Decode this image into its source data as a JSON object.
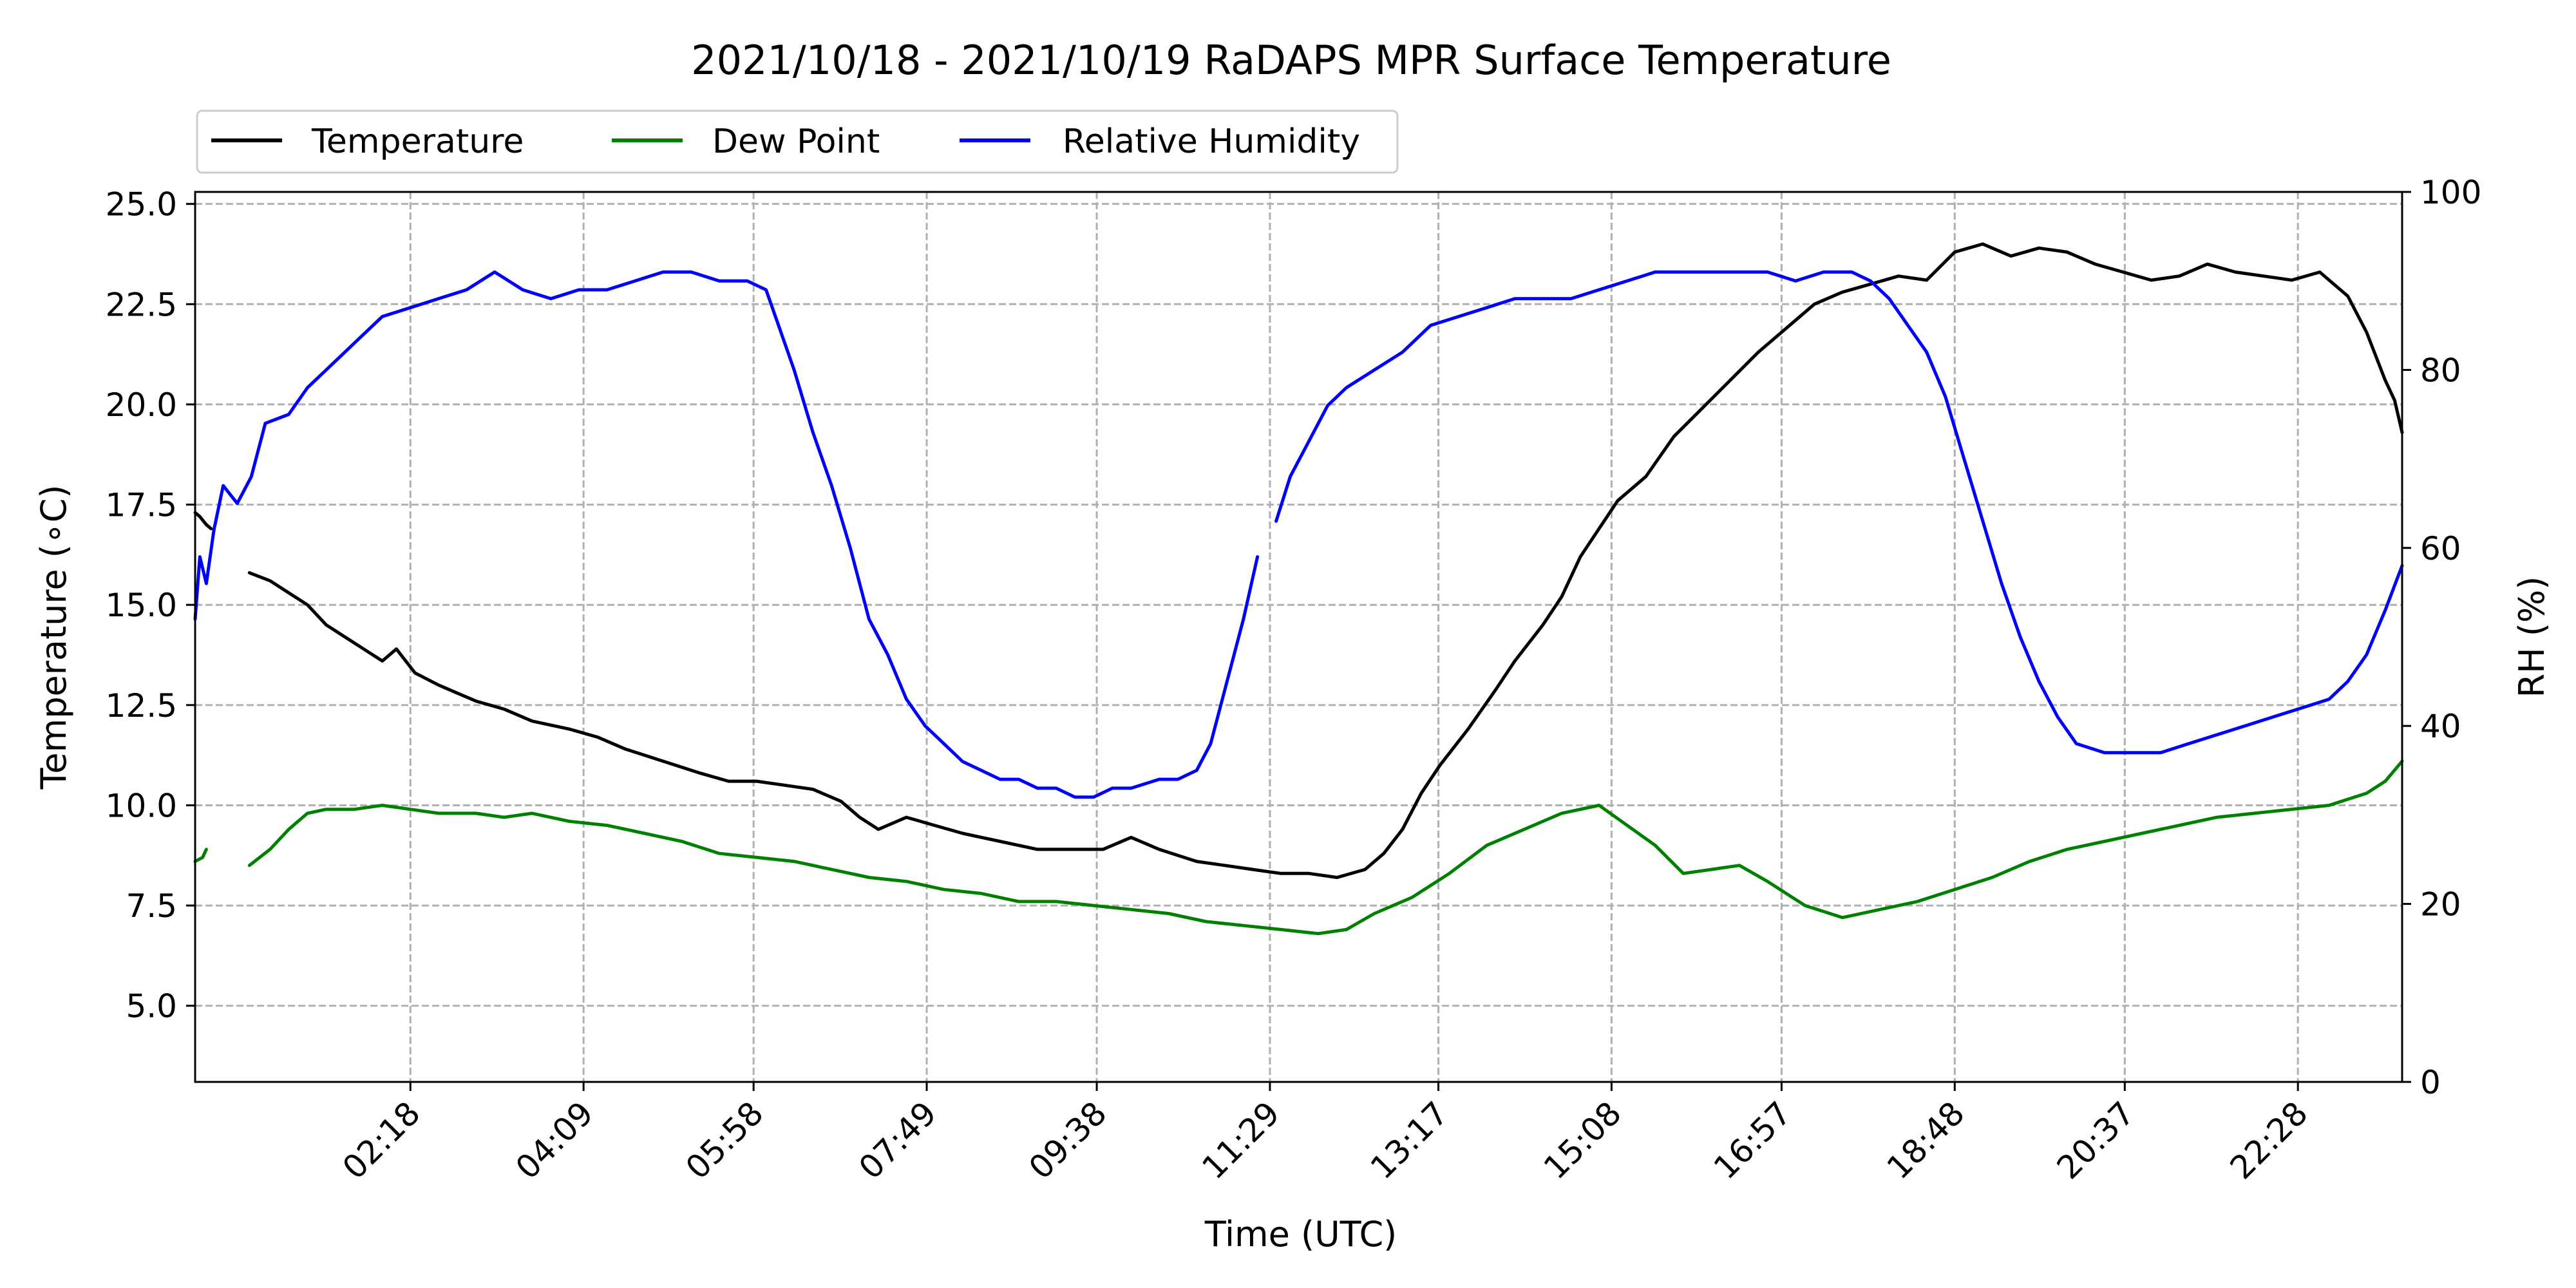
{
  "chart_data": {
    "type": "line",
    "title": "2021/10/18 - 2021/10/19 RaDAPS MPR Surface Temperature",
    "xlabel": "Time (UTC)",
    "ylabel_left": "Temperature (∘C)",
    "ylabel_right": "RH (%)",
    "x_ticks": [
      "02:18",
      "04:09",
      "05:58",
      "07:49",
      "09:38",
      "11:29",
      "13:17",
      "15:08",
      "16:57",
      "18:48",
      "20:37",
      "22:28"
    ],
    "y_ticks_left": [
      "5.0",
      "7.5",
      "10.0",
      "12.5",
      "15.0",
      "17.5",
      "20.0",
      "22.5",
      "25.0"
    ],
    "y_ticks_right": [
      "0",
      "20",
      "40",
      "60",
      "80",
      "100"
    ],
    "ylim_left": [
      3.1,
      25.3
    ],
    "ylim_right": [
      0,
      100
    ],
    "x_range_hours": [
      0.0,
      23.58
    ],
    "grid": true,
    "legend_placement": "top-left, above plot",
    "series": [
      {
        "name": "Temperature",
        "axis": "left",
        "color": "#000000",
        "points": [
          [
            0.0,
            17.3
          ],
          [
            0.05,
            17.2
          ],
          [
            0.12,
            17.0
          ],
          [
            0.17,
            16.9
          ],
          null,
          [
            0.58,
            15.8
          ],
          [
            0.8,
            15.6
          ],
          [
            1.0,
            15.3
          ],
          [
            1.2,
            15.0
          ],
          [
            1.4,
            14.5
          ],
          [
            1.6,
            14.2
          ],
          [
            1.8,
            13.9
          ],
          [
            2.0,
            13.6
          ],
          [
            2.15,
            13.9
          ],
          [
            2.35,
            13.3
          ],
          [
            2.6,
            13.0
          ],
          [
            2.8,
            12.8
          ],
          [
            3.0,
            12.6
          ],
          [
            3.3,
            12.4
          ],
          [
            3.6,
            12.1
          ],
          [
            4.0,
            11.9
          ],
          [
            4.3,
            11.7
          ],
          [
            4.6,
            11.4
          ],
          [
            5.0,
            11.1
          ],
          [
            5.4,
            10.8
          ],
          [
            5.7,
            10.6
          ],
          [
            6.0,
            10.6
          ],
          [
            6.3,
            10.5
          ],
          [
            6.6,
            10.4
          ],
          [
            6.9,
            10.1
          ],
          [
            7.1,
            9.7
          ],
          [
            7.3,
            9.4
          ],
          [
            7.6,
            9.7
          ],
          [
            7.9,
            9.5
          ],
          [
            8.2,
            9.3
          ],
          [
            8.6,
            9.1
          ],
          [
            9.0,
            8.9
          ],
          [
            9.4,
            8.9
          ],
          [
            9.7,
            8.9
          ],
          [
            10.0,
            9.2
          ],
          [
            10.3,
            8.9
          ],
          [
            10.7,
            8.6
          ],
          [
            11.0,
            8.5
          ],
          [
            11.3,
            8.4
          ],
          [
            11.6,
            8.3
          ],
          [
            11.9,
            8.3
          ],
          [
            12.2,
            8.2
          ],
          [
            12.5,
            8.4
          ],
          [
            12.7,
            8.8
          ],
          [
            12.9,
            9.4
          ],
          [
            13.1,
            10.3
          ],
          [
            13.3,
            11.0
          ],
          [
            13.6,
            11.9
          ],
          [
            13.9,
            12.9
          ],
          [
            14.1,
            13.6
          ],
          [
            14.4,
            14.5
          ],
          [
            14.6,
            15.2
          ],
          [
            14.8,
            16.2
          ],
          [
            15.0,
            16.9
          ],
          [
            15.2,
            17.6
          ],
          [
            15.5,
            18.2
          ],
          [
            15.8,
            19.2
          ],
          [
            16.1,
            19.9
          ],
          [
            16.4,
            20.6
          ],
          [
            16.7,
            21.3
          ],
          [
            17.0,
            21.9
          ],
          [
            17.3,
            22.5
          ],
          [
            17.6,
            22.8
          ],
          [
            17.9,
            23.0
          ],
          [
            18.2,
            23.2
          ],
          [
            18.5,
            23.1
          ],
          [
            18.8,
            23.8
          ],
          [
            19.1,
            24.0
          ],
          [
            19.4,
            23.7
          ],
          [
            19.7,
            23.9
          ],
          [
            20.0,
            23.8
          ],
          [
            20.3,
            23.5
          ],
          [
            20.6,
            23.3
          ],
          [
            20.9,
            23.1
          ],
          [
            21.2,
            23.2
          ],
          [
            21.5,
            23.5
          ],
          [
            21.8,
            23.3
          ],
          [
            22.1,
            23.2
          ],
          [
            22.4,
            23.1
          ],
          [
            22.7,
            23.3
          ],
          [
            23.0,
            22.7
          ],
          [
            23.2,
            21.8
          ],
          [
            23.4,
            20.6
          ],
          [
            23.5,
            20.1
          ],
          [
            23.58,
            19.3
          ]
        ]
      },
      {
        "name": "Dew Point",
        "axis": "left",
        "color": "#008000",
        "points": [
          [
            0.0,
            8.6
          ],
          [
            0.08,
            8.7
          ],
          [
            0.12,
            8.9
          ],
          null,
          [
            0.58,
            8.5
          ],
          [
            0.8,
            8.9
          ],
          [
            1.0,
            9.4
          ],
          [
            1.2,
            9.8
          ],
          [
            1.4,
            9.9
          ],
          [
            1.7,
            9.9
          ],
          [
            2.0,
            10.0
          ],
          [
            2.3,
            9.9
          ],
          [
            2.6,
            9.8
          ],
          [
            3.0,
            9.8
          ],
          [
            3.3,
            9.7
          ],
          [
            3.6,
            9.8
          ],
          [
            4.0,
            9.6
          ],
          [
            4.4,
            9.5
          ],
          [
            4.8,
            9.3
          ],
          [
            5.2,
            9.1
          ],
          [
            5.6,
            8.8
          ],
          [
            6.0,
            8.7
          ],
          [
            6.4,
            8.6
          ],
          [
            6.8,
            8.4
          ],
          [
            7.2,
            8.2
          ],
          [
            7.6,
            8.1
          ],
          [
            8.0,
            7.9
          ],
          [
            8.4,
            7.8
          ],
          [
            8.8,
            7.6
          ],
          [
            9.2,
            7.6
          ],
          [
            9.6,
            7.5
          ],
          [
            10.0,
            7.4
          ],
          [
            10.4,
            7.3
          ],
          [
            10.8,
            7.1
          ],
          [
            11.2,
            7.0
          ],
          [
            11.6,
            6.9
          ],
          [
            12.0,
            6.8
          ],
          [
            12.3,
            6.9
          ],
          [
            12.6,
            7.3
          ],
          [
            13.0,
            7.7
          ],
          [
            13.4,
            8.3
          ],
          [
            13.8,
            9.0
          ],
          [
            14.2,
            9.4
          ],
          [
            14.6,
            9.8
          ],
          [
            15.0,
            10.0
          ],
          [
            15.3,
            9.5
          ],
          [
            15.6,
            9.0
          ],
          [
            15.9,
            8.3
          ],
          [
            16.2,
            8.4
          ],
          [
            16.5,
            8.5
          ],
          [
            16.8,
            8.1
          ],
          [
            17.2,
            7.5
          ],
          [
            17.6,
            7.2
          ],
          [
            18.0,
            7.4
          ],
          [
            18.4,
            7.6
          ],
          [
            18.8,
            7.9
          ],
          [
            19.2,
            8.2
          ],
          [
            19.6,
            8.6
          ],
          [
            20.0,
            8.9
          ],
          [
            20.4,
            9.1
          ],
          [
            20.8,
            9.3
          ],
          [
            21.2,
            9.5
          ],
          [
            21.6,
            9.7
          ],
          [
            22.0,
            9.8
          ],
          [
            22.4,
            9.9
          ],
          [
            22.8,
            10.0
          ],
          [
            23.2,
            10.3
          ],
          [
            23.4,
            10.6
          ],
          [
            23.58,
            11.1
          ]
        ]
      },
      {
        "name": "Relative Humidity",
        "axis": "right",
        "color": "#0000ff",
        "points": [
          [
            0.0,
            52
          ],
          [
            0.05,
            59
          ],
          [
            0.12,
            56
          ],
          [
            0.2,
            62
          ],
          [
            0.3,
            67
          ],
          [
            0.45,
            65
          ],
          [
            0.6,
            68
          ],
          [
            0.75,
            74
          ],
          [
            1.0,
            75
          ],
          [
            1.2,
            78
          ],
          [
            1.4,
            80
          ],
          [
            1.6,
            82
          ],
          [
            1.8,
            84
          ],
          [
            2.0,
            86
          ],
          [
            2.3,
            87
          ],
          [
            2.6,
            88
          ],
          [
            2.9,
            89
          ],
          [
            3.2,
            91
          ],
          [
            3.5,
            89
          ],
          [
            3.8,
            88
          ],
          [
            4.1,
            89
          ],
          [
            4.4,
            89
          ],
          [
            4.7,
            90
          ],
          [
            5.0,
            91
          ],
          [
            5.3,
            91
          ],
          [
            5.6,
            90
          ],
          [
            5.9,
            90
          ],
          [
            6.1,
            89
          ],
          [
            6.2,
            86
          ],
          [
            6.4,
            80
          ],
          [
            6.6,
            73
          ],
          [
            6.8,
            67
          ],
          [
            7.0,
            60
          ],
          [
            7.2,
            52
          ],
          [
            7.4,
            48
          ],
          [
            7.6,
            43
          ],
          [
            7.8,
            40
          ],
          [
            8.0,
            38
          ],
          [
            8.2,
            36
          ],
          [
            8.4,
            35
          ],
          [
            8.6,
            34
          ],
          [
            8.8,
            34
          ],
          [
            9.0,
            33
          ],
          [
            9.2,
            33
          ],
          [
            9.4,
            32
          ],
          [
            9.6,
            32
          ],
          [
            9.8,
            33
          ],
          [
            10.0,
            33
          ],
          [
            10.3,
            34
          ],
          [
            10.5,
            34
          ],
          [
            10.7,
            35
          ],
          [
            10.85,
            38
          ],
          [
            11.0,
            44
          ],
          [
            11.2,
            52
          ],
          [
            11.35,
            59
          ],
          null,
          [
            11.55,
            63
          ],
          [
            11.7,
            68
          ],
          [
            11.9,
            72
          ],
          [
            12.1,
            76
          ],
          [
            12.3,
            78
          ],
          [
            12.6,
            80
          ],
          [
            12.9,
            82
          ],
          [
            13.2,
            85
          ],
          [
            13.5,
            86
          ],
          [
            13.8,
            87
          ],
          [
            14.1,
            88
          ],
          [
            14.4,
            88
          ],
          [
            14.7,
            88
          ],
          [
            15.0,
            89
          ],
          [
            15.3,
            90
          ],
          [
            15.6,
            91
          ],
          [
            15.9,
            91
          ],
          [
            16.2,
            91
          ],
          [
            16.5,
            91
          ],
          [
            16.8,
            91
          ],
          [
            17.1,
            90
          ],
          [
            17.4,
            91
          ],
          [
            17.7,
            91
          ],
          [
            17.9,
            90
          ],
          [
            18.1,
            88
          ],
          [
            18.3,
            85
          ],
          [
            18.5,
            82
          ],
          [
            18.7,
            77
          ],
          [
            18.9,
            70
          ],
          [
            19.1,
            63
          ],
          [
            19.3,
            56
          ],
          [
            19.5,
            50
          ],
          [
            19.7,
            45
          ],
          [
            19.9,
            41
          ],
          [
            20.1,
            38
          ],
          [
            20.4,
            37
          ],
          [
            20.7,
            37
          ],
          [
            21.0,
            37
          ],
          [
            21.3,
            38
          ],
          [
            21.6,
            39
          ],
          [
            21.9,
            40
          ],
          [
            22.2,
            41
          ],
          [
            22.5,
            42
          ],
          [
            22.8,
            43
          ],
          [
            23.0,
            45
          ],
          [
            23.2,
            48
          ],
          [
            23.4,
            53
          ],
          [
            23.58,
            58
          ]
        ]
      }
    ]
  }
}
